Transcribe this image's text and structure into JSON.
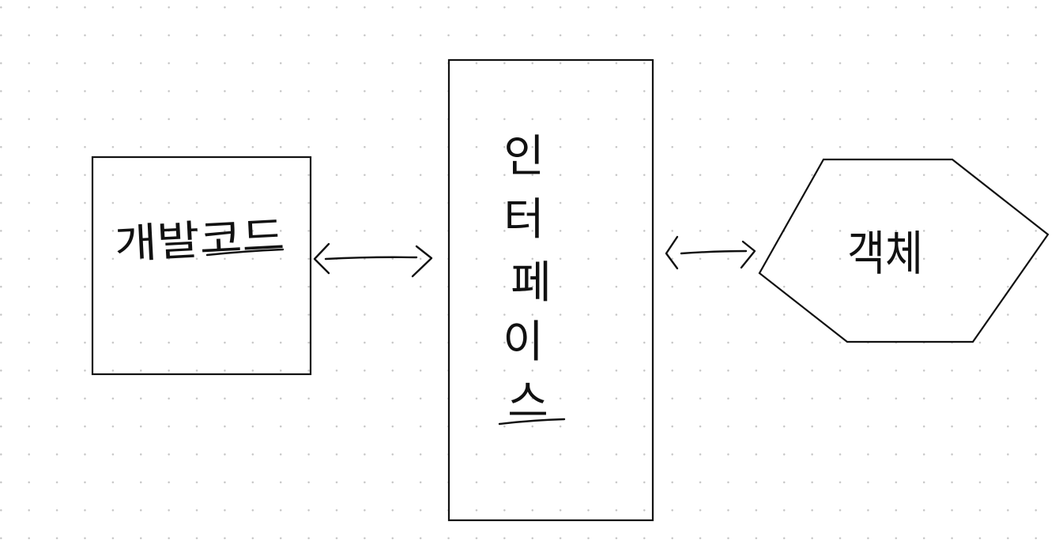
{
  "diagram": {
    "nodes": [
      {
        "id": "dev-code",
        "shape": "rectangle",
        "label": "개발코드"
      },
      {
        "id": "interface",
        "shape": "tall-rectangle",
        "label": "인터페이스",
        "characters": [
          "인",
          "터",
          "페",
          "이",
          "스"
        ]
      },
      {
        "id": "object",
        "shape": "hexagon",
        "label": "객체"
      }
    ],
    "edges": [
      {
        "from": "dev-code",
        "to": "interface",
        "direction": "bidirectional"
      },
      {
        "from": "interface",
        "to": "object",
        "direction": "bidirectional"
      }
    ]
  },
  "colors": {
    "ink": "#111111",
    "grid_dot": "#c6c6c6",
    "background": "#ffffff"
  }
}
